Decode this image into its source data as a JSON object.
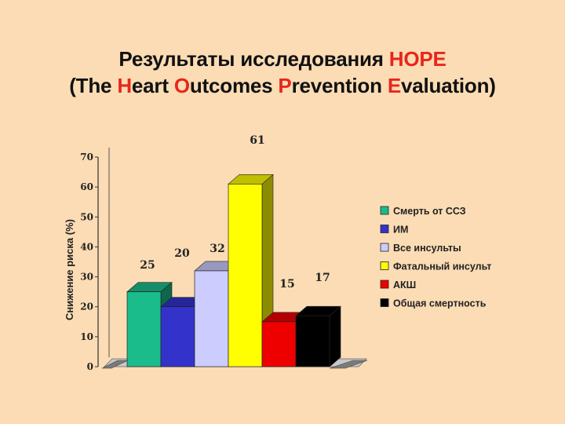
{
  "title": {
    "line1_prefix": "Результаты исследования ",
    "line1_accent": "HOPE",
    "line2_open": "(The ",
    "line2_h": "H",
    "line2_eart": "eart ",
    "line2_o": "O",
    "line2_utcomes": "utcomes ",
    "line2_p": "P",
    "line2_revention": "revention ",
    "line2_e": "E",
    "line2_close": "valuation)"
  },
  "colors": {
    "background": "#FBDCB4",
    "accent": "#E8261B"
  },
  "chart_data": {
    "type": "bar",
    "title": "",
    "xlabel": "",
    "ylabel": "Снижение риска (%)",
    "ylim": [
      0,
      70
    ],
    "yticks": [
      "0",
      "10",
      "20",
      "30",
      "40",
      "50",
      "60",
      "70"
    ],
    "grid": false,
    "legend_position": "right",
    "series": [
      {
        "name": "Смерть от ССЗ",
        "value": 25,
        "label": "25",
        "color": "#1ABC8C"
      },
      {
        "name": "ИМ",
        "value": 20,
        "label": "20",
        "color": "#3333CC"
      },
      {
        "name": "Все инсульты",
        "value": 32,
        "label": "32",
        "color": "#CCCCFF"
      },
      {
        "name": "Фатальный инсульт",
        "value": 61,
        "label": "61",
        "color": "#FFFF00"
      },
      {
        "name": "АКШ",
        "value": 15,
        "label": "15",
        "color": "#EE0000"
      },
      {
        "name": "Общая смертность",
        "value": 17,
        "label": "17",
        "color": "#000000"
      }
    ]
  }
}
